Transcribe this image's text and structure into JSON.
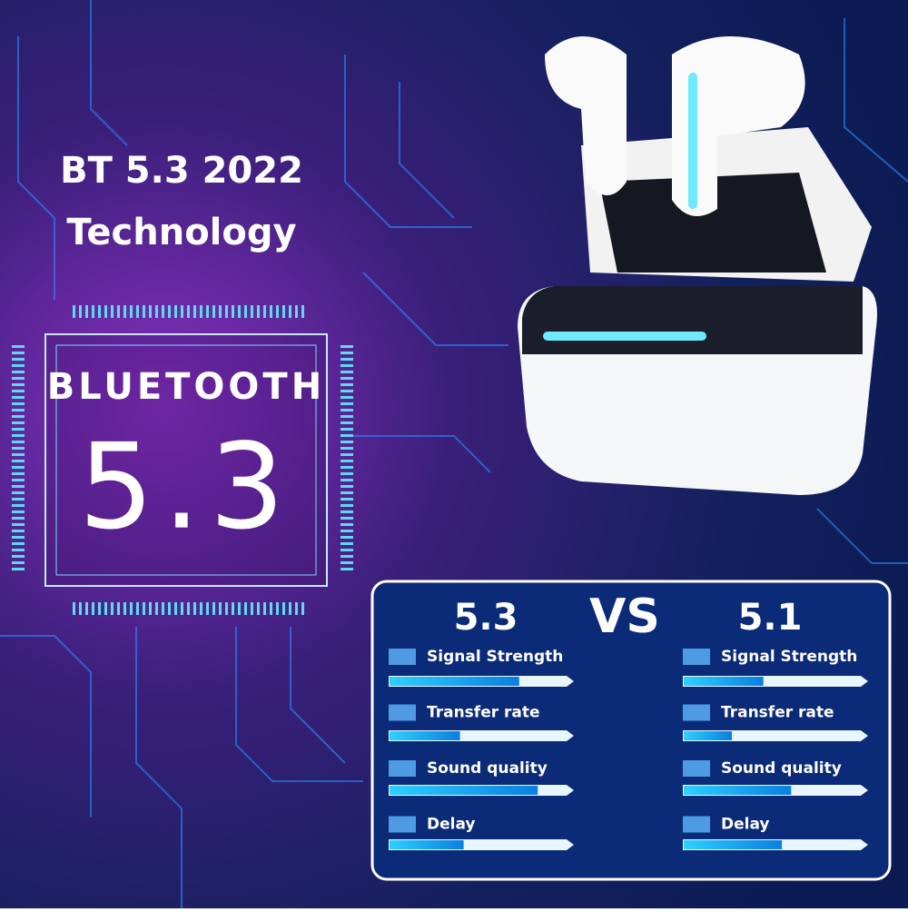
{
  "header": {
    "line1": "BT 5.3 2022",
    "line2": "Technology"
  },
  "chip": {
    "label": "BLUETOOTH",
    "version": "5.3"
  },
  "comparison": {
    "vs": "VS",
    "left": {
      "title": "5.3",
      "metrics": [
        {
          "name": "Signal Strength",
          "level": 70
        },
        {
          "name": "Transfer rate",
          "level": 38
        },
        {
          "name": "Sound quality",
          "level": 80
        },
        {
          "name": "Delay",
          "level": 40
        }
      ]
    },
    "right": {
      "title": "5.1",
      "metrics": [
        {
          "name": "Signal Strength",
          "level": 43
        },
        {
          "name": "Transfer rate",
          "level": 26
        },
        {
          "name": "Sound quality",
          "level": 58
        },
        {
          "name": "Delay",
          "level": 53
        }
      ]
    }
  }
}
